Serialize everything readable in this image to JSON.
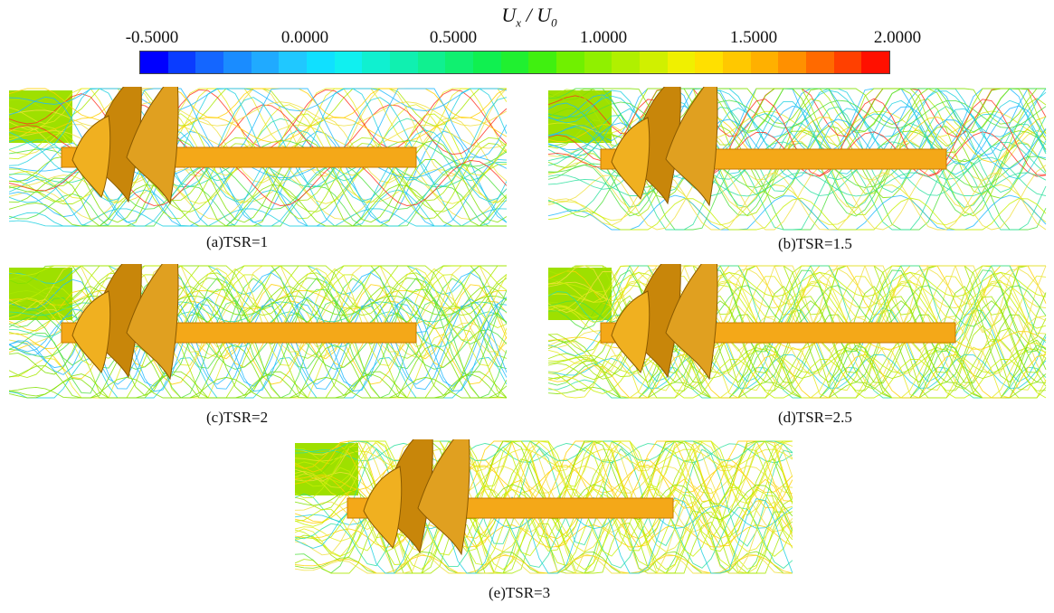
{
  "colorbar": {
    "title_main": "U",
    "title_sub1": "x",
    "title_sep": " / U",
    "title_sub2": "0",
    "ticks": [
      "-0.5000",
      "0.0000",
      "0.5000",
      "1.0000",
      "1.5000",
      "2.0000"
    ],
    "colors": [
      "#0000ff",
      "#0a3cff",
      "#1466ff",
      "#1a8cff",
      "#20aaff",
      "#20c8ff",
      "#10e0ff",
      "#10f0f0",
      "#10f0d0",
      "#10f0b0",
      "#10f090",
      "#10f070",
      "#10f050",
      "#20f030",
      "#40f010",
      "#70f000",
      "#90f000",
      "#b0f000",
      "#d0f000",
      "#f0f000",
      "#ffe000",
      "#ffc800",
      "#ffb000",
      "#ff9000",
      "#ff6a00",
      "#ff4000",
      "#ff1000"
    ]
  },
  "panels": [
    {
      "caption": "(a)TSR=1"
    },
    {
      "caption": "(b)TSR=1.5"
    },
    {
      "caption": "(c)TSR=2"
    },
    {
      "caption": "(d)TSR=2.5"
    },
    {
      "caption": "(e)TSR=3"
    }
  ]
}
